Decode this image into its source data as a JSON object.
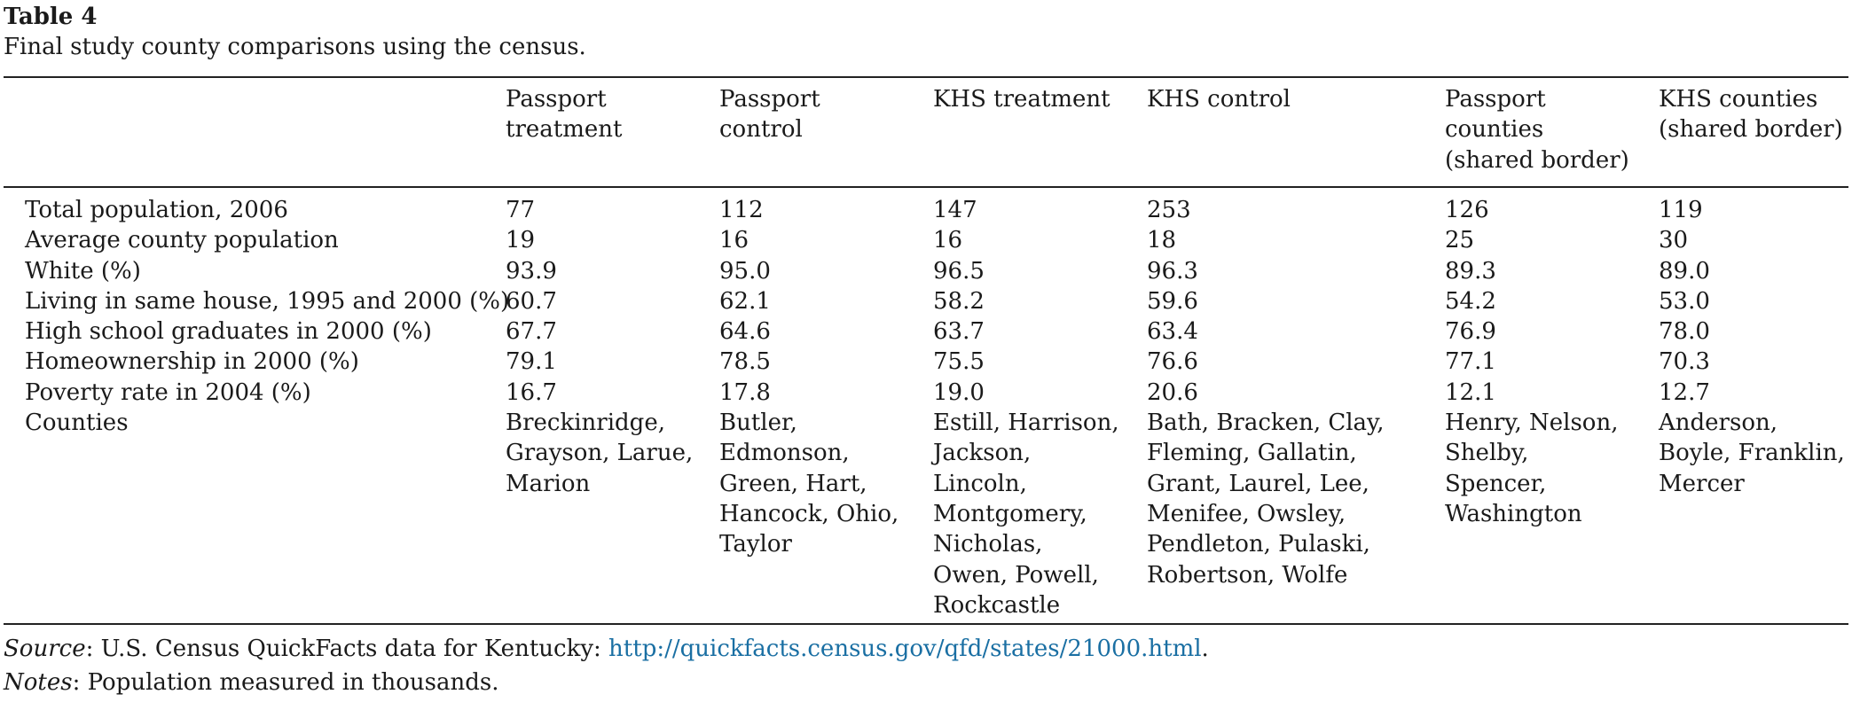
{
  "table": {
    "label": "Table 4",
    "caption": "Final study county comparisons using the census.",
    "columns": [
      "",
      "Passport\ntreatment",
      "Passport\ncontrol",
      "KHS treatment",
      "KHS control",
      "Passport\ncounties\n(shared border)",
      "KHS counties\n(shared border)"
    ],
    "rows": [
      {
        "label": "Total population, 2006",
        "values": [
          "77",
          "112",
          "147",
          "253",
          "126",
          "119"
        ]
      },
      {
        "label": "Average county population",
        "values": [
          "19",
          "16",
          "16",
          "18",
          "25",
          "30"
        ]
      },
      {
        "label": "White (%)",
        "values": [
          "93.9",
          "95.0",
          "96.5",
          "96.3",
          "89.3",
          "89.0"
        ]
      },
      {
        "label": "Living in same house, 1995 and 2000 (%)",
        "values": [
          "60.7",
          "62.1",
          "58.2",
          "59.6",
          "54.2",
          "53.0"
        ]
      },
      {
        "label": "High school graduates in 2000 (%)",
        "values": [
          "67.7",
          "64.6",
          "63.7",
          "63.4",
          "76.9",
          "78.0"
        ]
      },
      {
        "label": "Homeownership in 2000 (%)",
        "values": [
          "79.1",
          "78.5",
          "75.5",
          "76.6",
          "77.1",
          "70.3"
        ]
      },
      {
        "label": "Poverty rate in 2004 (%)",
        "values": [
          "16.7",
          "17.8",
          "19.0",
          "20.6",
          "12.1",
          "12.7"
        ]
      }
    ],
    "counties": {
      "label": "Counties",
      "values": [
        "Breckinridge,\nGrayson, Larue,\nMarion",
        "Butler,\nEdmonson,\nGreen, Hart,\nHancock, Ohio,\nTaylor",
        "Estill, Harrison,\nJackson,\nLincoln,\nMontgomery,\nNicholas,\nOwen, Powell,\nRockcastle",
        "Bath, Bracken, Clay,\nFleming, Gallatin,\nGrant, Laurel, Lee,\nMenifee, Owsley,\nPendleton, Pulaski,\nRobertson, Wolfe",
        "Henry, Nelson,\nShelby,\nSpencer,\nWashington",
        "Anderson,\nBoyle, Franklin,\nMercer"
      ]
    }
  },
  "footnotes": {
    "source_label": "Source",
    "source_text": ": U.S. Census QuickFacts data for Kentucky: ",
    "source_link": "http://quickfacts.census.gov/qfd/states/21000.html",
    "source_end": ".",
    "notes_label": "Notes",
    "notes_text": ": Population measured in thousands."
  },
  "colors": {
    "text": "#1a1a1a",
    "link": "#1a6fa3",
    "rule": "#222222"
  }
}
